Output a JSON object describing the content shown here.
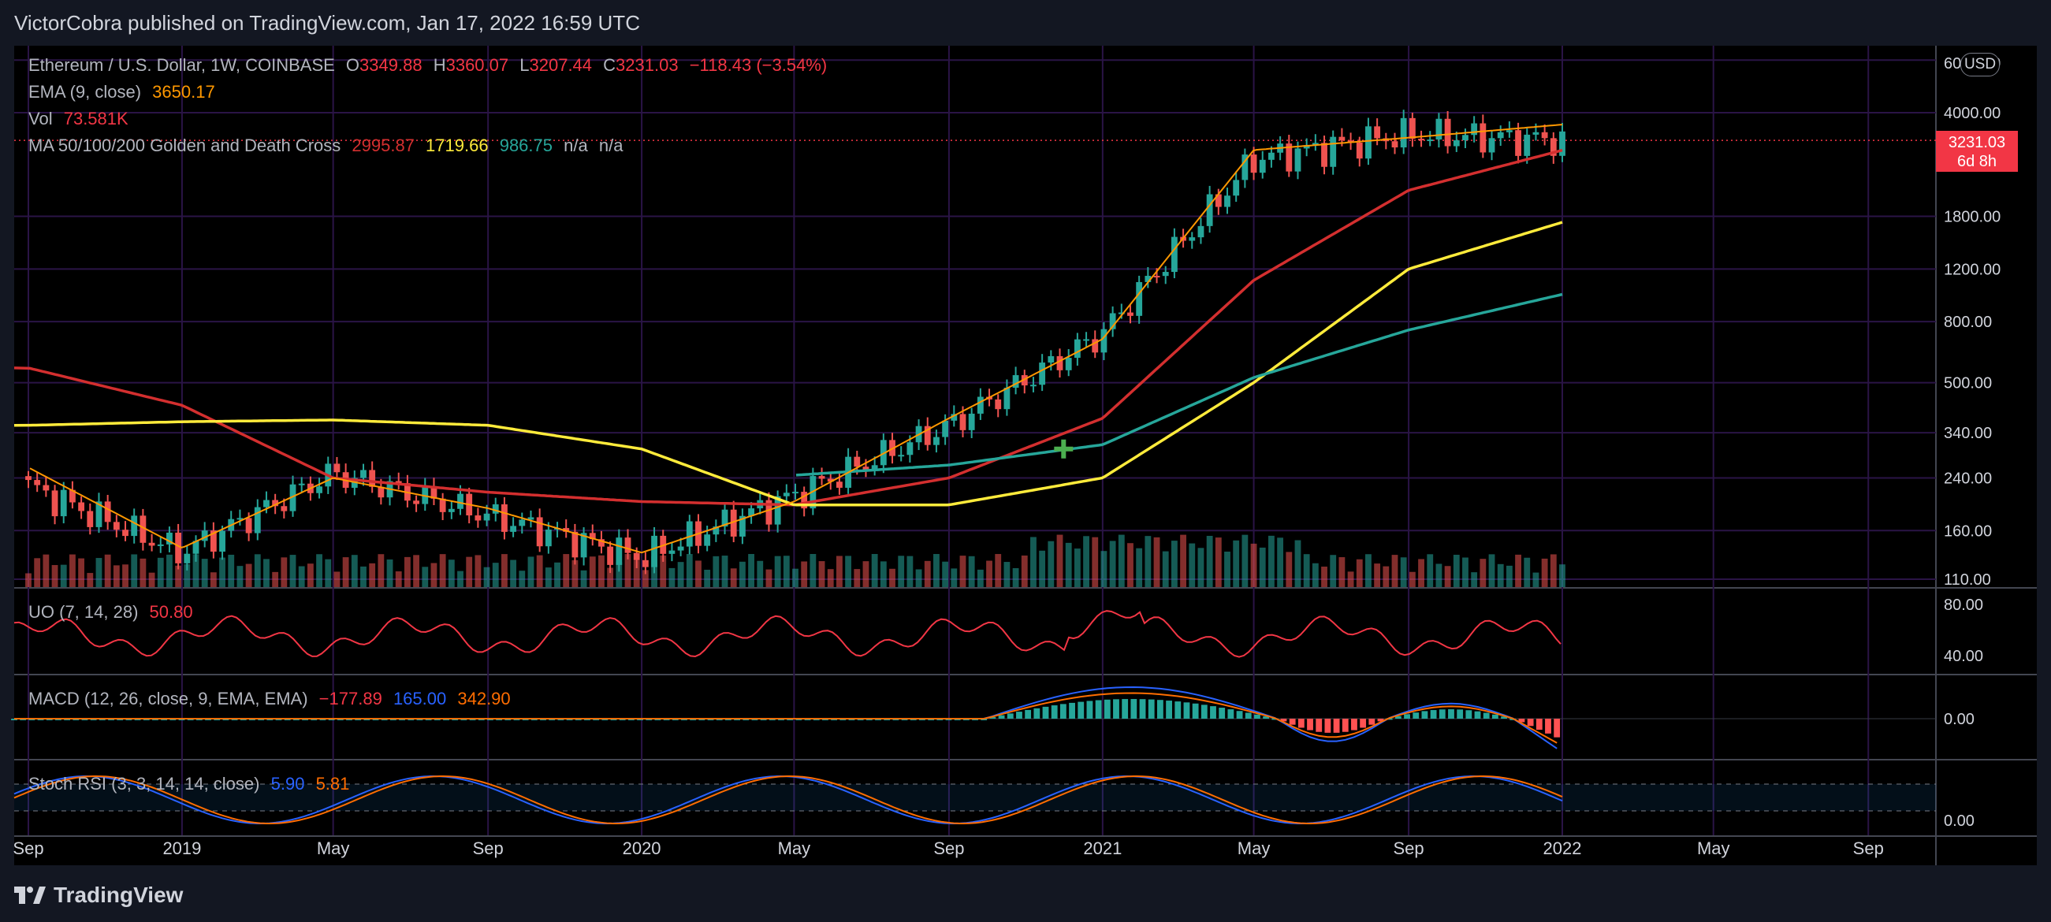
{
  "header": {
    "published": "VictorCobra published on TradingView.com, Jan 17, 2022 16:59 UTC"
  },
  "legend": {
    "symbol": "Ethereum / U.S. Dollar, 1W, COINBASE",
    "o_label": "O",
    "o": "3349.88",
    "h_label": "H",
    "h": "3360.07",
    "l_label": "L",
    "l": "3207.44",
    "c_label": "C",
    "c": "3231.03",
    "change": "−118.43 (−3.54%)",
    "ema_label": "EMA (9, close)",
    "ema_value": "3650.17",
    "vol_label": "Vol",
    "vol_value": "73.581K",
    "ma_label": "MA 50/100/200 Golden and Death Cross",
    "ma50": "2995.87",
    "ma100": "1719.66",
    "ma200": "986.75",
    "na1": "n/a",
    "na2": "n/a"
  },
  "uo_legend": {
    "label": "UO (7, 14, 28)",
    "value": "50.80"
  },
  "macd_legend": {
    "label": "MACD (12, 26, close, 9, EMA, EMA)",
    "v1": "−177.89",
    "v2": "165.00",
    "v3": "342.90"
  },
  "stoch_legend": {
    "label": "Stoch RSI (3, 3, 14, 14, close)",
    "k": "5.90",
    "d": "5.81"
  },
  "price_axis": {
    "currency_badge": "USD",
    "ticks": [
      "6000.00",
      "4000.00",
      "1800.00",
      "1200.00",
      "800.00",
      "500.00",
      "340.00",
      "240.00",
      "160.00",
      "110.00"
    ],
    "last_price": "3231.03",
    "countdown": "6d 8h"
  },
  "uo_axis": [
    "80.00",
    "40.00"
  ],
  "macd_axis": [
    "0.00"
  ],
  "stoch_axis": [
    "0.00"
  ],
  "time_axis": [
    "Sep",
    "2019",
    "May",
    "Sep",
    "2020",
    "May",
    "Sep",
    "2021",
    "May",
    "Sep",
    "2022",
    "May",
    "Sep"
  ],
  "footer": {
    "brand": "TradingView"
  },
  "colors": {
    "up": "#26a69a",
    "down": "#ef5350",
    "ema": "#ff9800",
    "ma50": "#d32f2f",
    "ma100": "#ffeb3b",
    "ma200": "#26a69a",
    "uo": "#f23645",
    "macd": "#2962ff",
    "signal": "#ff6d00",
    "grid": "#2a1446"
  },
  "chart_data": {
    "type": "line",
    "title": "Ethereum / U.S. Dollar, 1W, COINBASE",
    "price_scale": "log",
    "ylim": [
      105,
      6200
    ],
    "x": [
      "2018-09",
      "2019-01",
      "2019-05",
      "2019-09",
      "2020-01",
      "2020-05",
      "2020-09",
      "2021-01",
      "2021-05",
      "2021-09",
      "2022-01"
    ],
    "series": [
      {
        "name": "close",
        "values": [
          225,
          135,
          250,
          180,
          130,
          210,
          360,
          730,
          2800,
          3400,
          3231
        ]
      },
      {
        "name": "EMA (9, close)",
        "values": [
          260,
          140,
          240,
          190,
          135,
          200,
          380,
          700,
          3000,
          3300,
          3650
        ]
      },
      {
        "name": "MA50",
        "values": [
          560,
          420,
          240,
          215,
          200,
          195,
          240,
          380,
          1100,
          2200,
          2996
        ]
      },
      {
        "name": "MA100",
        "values": [
          360,
          370,
          375,
          360,
          300,
          195,
          195,
          240,
          500,
          1200,
          1720
        ]
      },
      {
        "name": "MA200",
        "values": [
          null,
          null,
          null,
          null,
          null,
          245,
          265,
          310,
          520,
          750,
          987
        ]
      }
    ],
    "markers": [
      {
        "type": "golden cross",
        "x": "2020-12",
        "y": 300
      }
    ],
    "indicators": {
      "UO": {
        "params": "7, 14, 28",
        "last": 50.8
      },
      "MACD": {
        "params": "12, 26, close, 9, EMA, EMA",
        "last": [
          -177.89,
          165.0,
          342.9
        ]
      },
      "StochRSI": {
        "params": "3, 3, 14, 14, close",
        "last": [
          5.9,
          5.81
        ]
      }
    }
  }
}
